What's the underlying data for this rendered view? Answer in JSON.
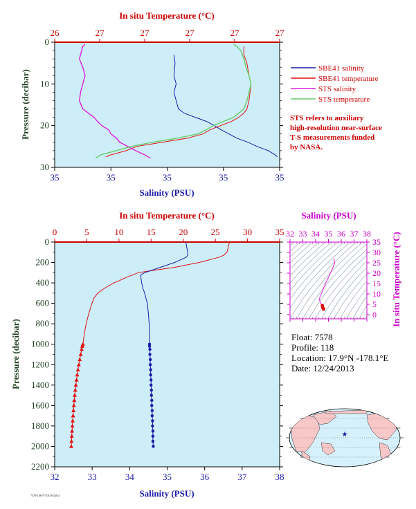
{
  "colors": {
    "plot_bg": "#cdeef8",
    "salinity": "#1a1aa8",
    "temperature": "#e01010",
    "sts_salinity": "#e020e0",
    "sts_temperature": "#66cc66",
    "axis_red": "#cc0000",
    "axis_green": "#204020",
    "axis_magenta": "#cc00cc",
    "axis_black": "#000000"
  },
  "chart_data": [
    {
      "id": "surface",
      "type": "line",
      "top_axis_label": "In situ Temperature (°C)",
      "top_ticks": [
        "26",
        "27",
        "27",
        "27",
        "27",
        "27"
      ],
      "bottom_axis_label": "Salinity (PSU)",
      "bottom_ticks": [
        "35",
        "35",
        "35",
        "35",
        "35"
      ],
      "y_axis_label": "Pressure (decibar)",
      "y_ticks": [
        "0",
        "10",
        "20",
        "30"
      ],
      "ylim": [
        0,
        30
      ],
      "temperature_xlim": [
        26.0,
        28.2
      ],
      "salinity_xlim": [
        34.0,
        36.0
      ],
      "legend": [
        {
          "name": "SBE41 salinity",
          "color": "#1a1aa8"
        },
        {
          "name": "SBE41 temperature",
          "color": "#e01010"
        },
        {
          "name": "STS salinity",
          "color": "#e020e0"
        },
        {
          "name": "STS temperature",
          "color": "#66cc66"
        }
      ],
      "note": [
        "STS refers to auxiliary",
        "high-resolution near-surface",
        "T-S measurements funded",
        "by NASA."
      ],
      "series": [
        {
          "key": "sbe41_salinity",
          "axis": "salinity",
          "pressure": [
            3,
            5,
            8,
            10,
            12,
            14,
            16,
            17,
            18,
            19,
            20,
            21,
            22,
            23,
            24,
            25,
            26,
            27,
            27.5
          ],
          "values": [
            35.06,
            35.07,
            35.06,
            35.08,
            35.06,
            35.08,
            35.1,
            35.15,
            35.25,
            35.35,
            35.42,
            35.48,
            35.55,
            35.62,
            35.72,
            35.8,
            35.9,
            35.96,
            35.98
          ]
        },
        {
          "key": "sbe41_temperature",
          "axis": "temperature",
          "pressure": [
            1,
            3,
            5,
            8,
            10,
            12,
            14,
            16,
            17,
            18,
            19,
            20,
            21,
            22,
            23,
            24,
            25,
            26,
            27,
            27.5
          ],
          "values": [
            27.85,
            27.85,
            27.88,
            27.9,
            27.92,
            27.91,
            27.9,
            27.88,
            27.85,
            27.8,
            27.73,
            27.62,
            27.52,
            27.45,
            27.3,
            27.05,
            26.8,
            26.7,
            26.55,
            26.5
          ]
        },
        {
          "key": "sts_salinity",
          "axis": "salinity",
          "pressure": [
            0.5,
            1,
            2,
            4,
            6,
            8,
            10,
            12,
            14,
            16,
            17,
            18,
            19,
            20,
            21,
            22,
            23,
            24,
            25,
            26,
            27,
            27.8
          ],
          "values": [
            34.27,
            34.25,
            34.24,
            34.22,
            34.25,
            34.27,
            34.25,
            34.23,
            34.22,
            34.25,
            34.3,
            34.35,
            34.38,
            34.42,
            34.48,
            34.5,
            34.55,
            34.58,
            34.65,
            34.72,
            34.8,
            34.85
          ]
        },
        {
          "key": "sts_temperature",
          "axis": "temperature",
          "pressure": [
            0.5,
            1,
            2,
            4,
            6,
            8,
            10,
            12,
            14,
            16,
            17,
            18,
            19,
            20,
            21,
            22,
            23,
            24,
            25,
            26,
            27,
            27.8
          ],
          "values": [
            27.75,
            27.78,
            27.82,
            27.85,
            27.87,
            27.9,
            27.92,
            27.9,
            27.88,
            27.85,
            27.8,
            27.75,
            27.65,
            27.55,
            27.48,
            27.4,
            27.2,
            26.95,
            26.75,
            26.6,
            26.45,
            26.4
          ]
        }
      ]
    },
    {
      "id": "profile",
      "type": "line",
      "top_axis_label": "In situ Temperature (°C)",
      "top_ticks": [
        "0",
        "5",
        "10",
        "15",
        "20",
        "25",
        "30",
        "35"
      ],
      "bottom_axis_label": "Salinity (PSU)",
      "bottom_ticks": [
        "32",
        "33",
        "34",
        "35",
        "36",
        "37",
        "38"
      ],
      "y_axis_label": "Pressure (decibar)",
      "y_ticks": [
        "0",
        "200",
        "400",
        "600",
        "800",
        "1000",
        "1200",
        "1400",
        "1600",
        "1800",
        "2000",
        "2200"
      ],
      "ylim": [
        0,
        2200
      ],
      "temperature_xlim": [
        0,
        35
      ],
      "salinity_xlim": [
        32,
        38
      ],
      "series": [
        {
          "key": "temperature_profile",
          "axis": "temperature",
          "pressure": [
            0,
            50,
            100,
            130,
            150,
            200,
            250,
            280,
            300,
            350,
            380,
            400,
            450,
            500,
            550,
            600,
            700,
            800,
            900,
            1000
          ],
          "values": [
            27.2,
            27.0,
            26.8,
            26.3,
            25.5,
            22.5,
            18.5,
            15.0,
            13.0,
            11.0,
            10.0,
            9.2,
            7.8,
            6.7,
            6.1,
            5.8,
            5.3,
            4.9,
            4.6,
            4.4
          ]
        },
        {
          "key": "temperature_deep",
          "axis": "temperature",
          "marker": "triangle",
          "pressure": [
            1000,
            1020,
            1050,
            1100,
            1150,
            1200,
            1250,
            1300,
            1350,
            1400,
            1450,
            1500,
            1550,
            1600,
            1650,
            1700,
            1750,
            1800,
            1850,
            1900,
            1950,
            2000
          ],
          "values": [
            4.4,
            4.3,
            4.2,
            4.05,
            3.9,
            3.75,
            3.62,
            3.5,
            3.4,
            3.3,
            3.2,
            3.12,
            3.05,
            2.98,
            2.92,
            2.86,
            2.8,
            2.75,
            2.7,
            2.66,
            2.62,
            2.58
          ]
        },
        {
          "key": "salinity_profile",
          "axis": "salinity",
          "pressure": [
            0,
            50,
            100,
            130,
            150,
            200,
            250,
            300,
            320,
            350,
            400,
            450,
            500,
            600,
            700,
            800,
            900,
            1000
          ],
          "values": [
            35.5,
            35.52,
            35.55,
            35.55,
            35.5,
            35.2,
            34.8,
            34.4,
            34.3,
            34.3,
            34.32,
            34.35,
            34.4,
            34.47,
            34.5,
            34.52,
            34.53,
            34.53
          ]
        },
        {
          "key": "salinity_deep",
          "axis": "salinity",
          "marker": "circle",
          "pressure": [
            1000,
            1020,
            1050,
            1100,
            1150,
            1200,
            1250,
            1300,
            1350,
            1400,
            1450,
            1500,
            1550,
            1600,
            1650,
            1700,
            1750,
            1800,
            1850,
            1900,
            1950,
            2000
          ],
          "values": [
            34.53,
            34.53,
            34.54,
            34.54,
            34.55,
            34.55,
            34.56,
            34.56,
            34.57,
            34.57,
            34.58,
            34.58,
            34.59,
            34.59,
            34.6,
            34.6,
            34.61,
            34.61,
            34.62,
            34.62,
            34.62,
            34.63
          ]
        }
      ]
    },
    {
      "id": "ts_diagram",
      "type": "scatter",
      "top_axis_label": "Salinity (PSU)",
      "top_ticks": [
        "32",
        "33",
        "34",
        "35",
        "36",
        "37",
        "38"
      ],
      "right_axis_label": "In situ Temperature (°C)",
      "right_ticks": [
        "0",
        "5",
        "10",
        "15",
        "20",
        "25",
        "30",
        "35"
      ],
      "salinity_xlim": [
        32,
        38
      ],
      "temperature_ylim": [
        -2,
        35
      ],
      "series": [
        {
          "key": "ts_curve",
          "salinity": [
            35.4,
            35.5,
            35.3,
            35.0,
            34.7,
            34.5,
            34.35,
            34.3,
            34.35,
            34.45,
            34.52,
            34.55,
            34.6,
            34.62
          ],
          "temperature": [
            27.0,
            25.0,
            22.0,
            18.0,
            14.0,
            11.0,
            9.0,
            7.5,
            6.0,
            5.0,
            4.4,
            3.5,
            3.0,
            2.6
          ]
        }
      ]
    }
  ],
  "float_info": {
    "float_line": "Float:  7578",
    "profile_line": "Profile:  118",
    "location_line": "Location:  17.9°N  -178.1°E",
    "date_line": "Date:  12/24/2013"
  },
  "map": {
    "location": {
      "lat": 17.9,
      "lon": -178.1
    }
  },
  "footer": {
    "stamp": "7578-118-077 01/03/2014"
  }
}
